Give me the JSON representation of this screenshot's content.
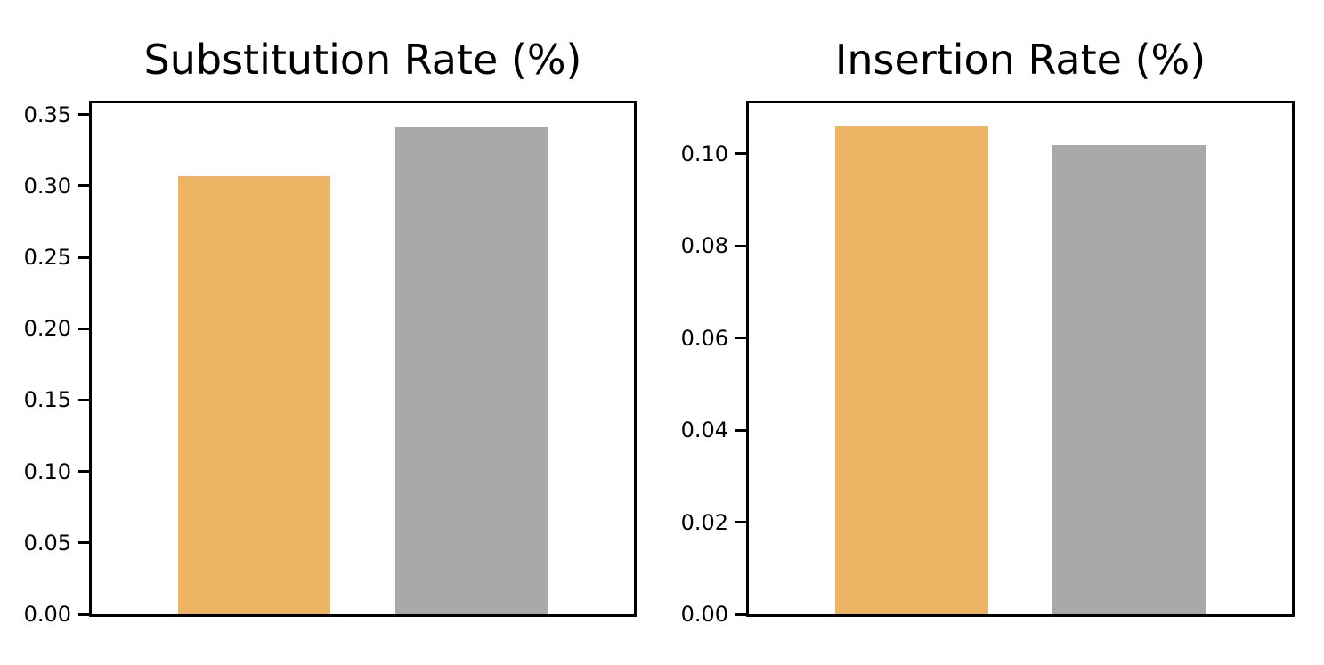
{
  "figure": {
    "background_color": "#ffffff",
    "text_color": "#000000"
  },
  "chart_data": [
    {
      "type": "bar",
      "title": "Substitution Rate (%)",
      "categories": [
        "orange",
        "gray"
      ],
      "values": [
        0.307,
        0.341
      ],
      "bar_colors": [
        "#EDB464",
        "#A9A9A9"
      ],
      "xlabel": "",
      "ylabel": "",
      "ylim": [
        0,
        0.358
      ],
      "yticks": [
        0.0,
        0.05,
        0.1,
        0.15,
        0.2,
        0.25,
        0.3,
        0.35
      ],
      "ytick_labels": [
        "0.00",
        "0.05",
        "0.10",
        "0.15",
        "0.20",
        "0.25",
        "0.30",
        "0.35"
      ],
      "xtick_labels": [],
      "grid": false,
      "legend": null,
      "bar_centers_frac": [
        0.3,
        0.7
      ],
      "bar_width_frac": 0.281
    },
    {
      "type": "bar",
      "title": "Insertion Rate (%)",
      "categories": [
        "orange",
        "gray"
      ],
      "values": [
        0.106,
        0.102
      ],
      "bar_colors": [
        "#EDB464",
        "#A9A9A9"
      ],
      "xlabel": "",
      "ylabel": "",
      "ylim": [
        0,
        0.111
      ],
      "yticks": [
        0.0,
        0.02,
        0.04,
        0.06,
        0.08,
        0.1
      ],
      "ytick_labels": [
        "0.00",
        "0.02",
        "0.04",
        "0.06",
        "0.08",
        "0.10"
      ],
      "xtick_labels": [],
      "grid": false,
      "legend": null,
      "bar_centers_frac": [
        0.3,
        0.7
      ],
      "bar_width_frac": 0.281
    }
  ]
}
